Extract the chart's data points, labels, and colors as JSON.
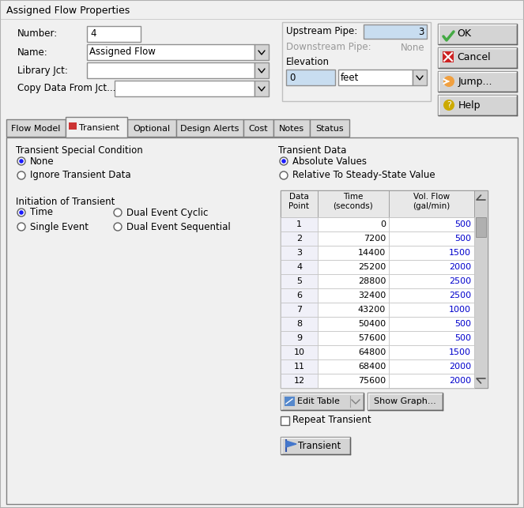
{
  "title": "Assigned Flow Properties",
  "bg_color": "#f0f0f0",
  "white": "#ffffff",
  "tab_active": "Transient",
  "tabs": [
    "Flow Model",
    "Transient",
    "Optional",
    "Design Alerts",
    "Cost",
    "Notes",
    "Status"
  ],
  "fields": {
    "Number": "4",
    "Name": "Assigned Flow",
    "Library Jct": "",
    "Copy Data From Jct": "",
    "Upstream Pipe": "3",
    "Downstream Pipe": "None",
    "Elevation": "0",
    "Elevation unit": "feet"
  },
  "table_headers": [
    "Data\nPoint",
    "Time\n(seconds)",
    "Vol. Flow\n(gal/min)"
  ],
  "table_data": [
    [
      1,
      0,
      500
    ],
    [
      2,
      7200,
      500
    ],
    [
      3,
      14400,
      1500
    ],
    [
      4,
      25200,
      2000
    ],
    [
      5,
      28800,
      2500
    ],
    [
      6,
      32400,
      2500
    ],
    [
      7,
      43200,
      1000
    ],
    [
      8,
      50400,
      500
    ],
    [
      9,
      57600,
      500
    ],
    [
      10,
      64800,
      1500
    ],
    [
      11,
      68400,
      2000
    ],
    [
      12,
      75600,
      2000
    ]
  ],
  "buttons": {
    "ok": "OK",
    "cancel": "Cancel",
    "jump": "Jump...",
    "help": "Help"
  },
  "bottom_buttons": [
    "Edit Table",
    "Show Graph..."
  ],
  "repeat_transient": "Repeat Transient",
  "transient_label": "Transient",
  "vol_flow_color": "#0000cc",
  "disabled_color": "#999999",
  "cell_blue": "#c8ddf0",
  "header_gray": "#e0e0e0",
  "scrollbar_gray": "#c0c0c0",
  "tab_widths": [
    75,
    78,
    62,
    85,
    38,
    46,
    50
  ]
}
